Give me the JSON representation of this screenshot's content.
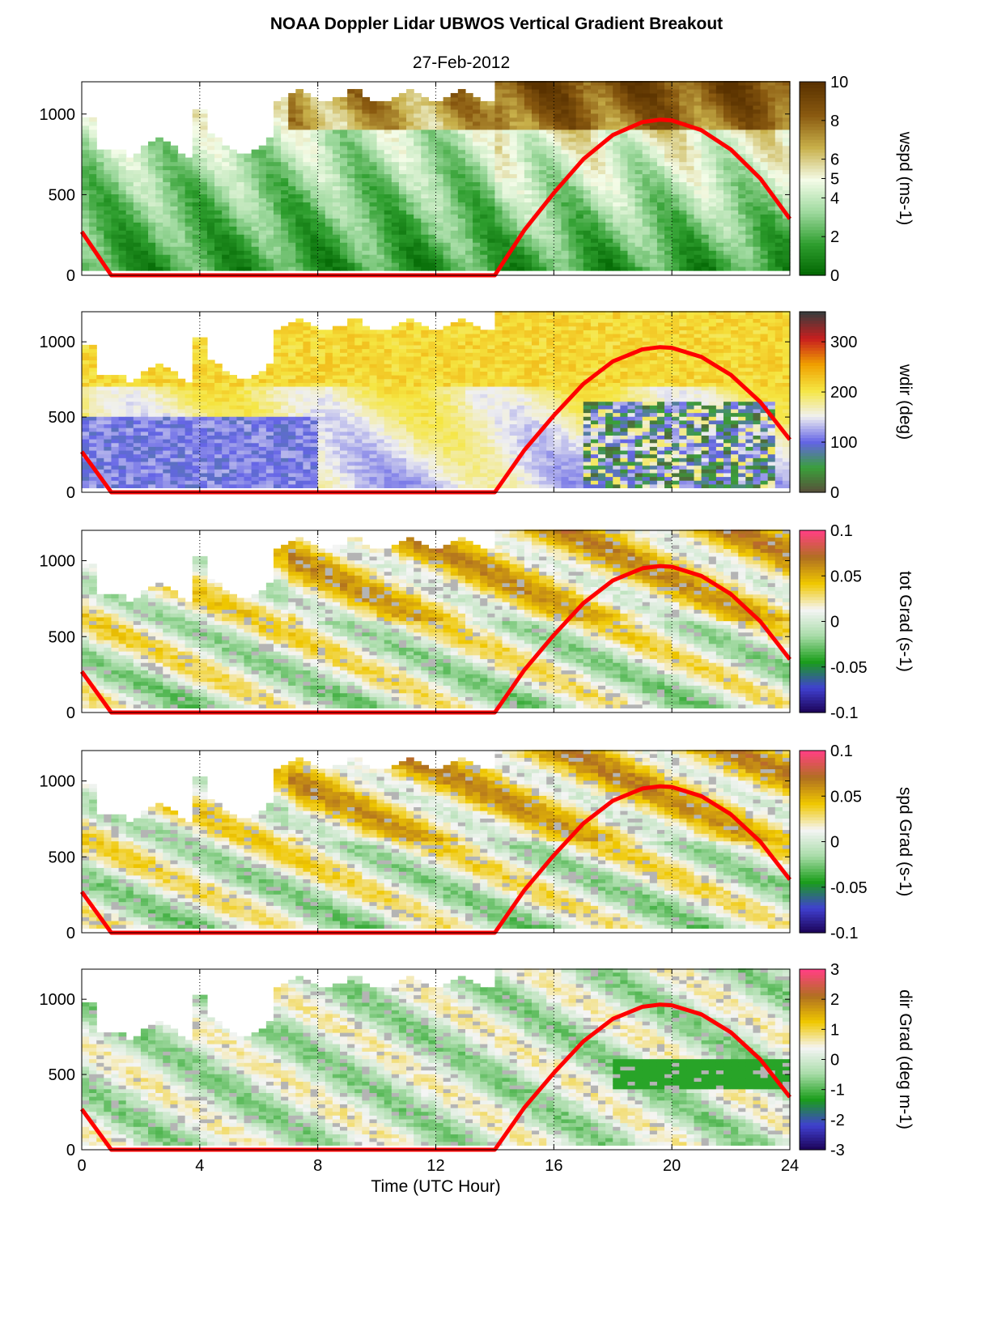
{
  "title": "NOAA Doppler Lidar  UBWOS  Vertical Gradient Breakout",
  "subtitle": "27-Feb-2012",
  "chart_data": {
    "type": "heatmap",
    "xlabel": "Time (UTC Hour)",
    "xlim": [
      0,
      24
    ],
    "xticks": [
      0,
      4,
      8,
      12,
      16,
      20,
      24
    ],
    "ylim": [
      0,
      1200
    ],
    "yticks": [
      0,
      500,
      1000
    ],
    "dotted_gridlines_x": [
      4,
      8,
      12,
      16,
      20
    ],
    "overlay_line": {
      "color": "#ff0000",
      "points": [
        [
          0,
          270
        ],
        [
          1,
          0
        ],
        [
          14,
          0
        ],
        [
          15,
          280
        ],
        [
          16,
          510
        ],
        [
          17,
          720
        ],
        [
          18,
          870
        ],
        [
          19,
          950
        ],
        [
          19.6,
          965
        ],
        [
          20,
          960
        ],
        [
          21,
          900
        ],
        [
          22,
          780
        ],
        [
          23,
          600
        ],
        [
          24,
          350
        ]
      ]
    },
    "panels": [
      {
        "id": "wspd",
        "colorbar_label": "wspd (ms-1)",
        "colorbar_ticks": [
          "10",
          "8",
          "6",
          "5",
          "4",
          "2",
          "0"
        ],
        "clim": [
          0,
          10
        ],
        "description_colors": [
          "#006400",
          "#2e9e2e",
          "#9ed99e",
          "#f4fce8",
          "#c8b04a",
          "#8a5a10",
          "#5a3200"
        ]
      },
      {
        "id": "wdir",
        "colorbar_label": "wdir (deg)",
        "colorbar_ticks": [
          "300",
          "200",
          "100",
          "0"
        ],
        "clim": [
          0,
          360
        ],
        "description_colors": [
          "#5a4a3a",
          "#3aa03a",
          "#6464e6",
          "#f0f0f0",
          "#f5e642",
          "#f0a000",
          "#c81e1e",
          "#3c3c3c"
        ]
      },
      {
        "id": "totgrad",
        "colorbar_label": "tot Grad (s-1)",
        "colorbar_ticks": [
          "0.1",
          "0.05",
          "0",
          "-0.05",
          "-0.1"
        ],
        "clim": [
          -0.1,
          0.1
        ],
        "description_colors": [
          "#1a0050",
          "#4040d0",
          "#1a9e1a",
          "#a8dca8",
          "#f5f5f5",
          "#f0c800",
          "#b07020",
          "#ff4080"
        ]
      },
      {
        "id": "spdgrad",
        "colorbar_label": "spd Grad (s-1)",
        "colorbar_ticks": [
          "0.1",
          "0.05",
          "0",
          "-0.05",
          "-0.1"
        ],
        "clim": [
          -0.1,
          0.1
        ],
        "description_colors": [
          "#1a0050",
          "#4040d0",
          "#1a9e1a",
          "#a8dca8",
          "#f5f5f5",
          "#f0c800",
          "#b07020",
          "#ff4080"
        ]
      },
      {
        "id": "dirgrad",
        "colorbar_label": "dir Grad (deg m-1)",
        "colorbar_ticks": [
          "3",
          "2",
          "1",
          "0",
          "-1",
          "-2",
          "-3"
        ],
        "clim": [
          -3,
          3
        ],
        "description_colors": [
          "#1a0050",
          "#4040d0",
          "#1a9e1a",
          "#a8dca8",
          "#f5f5f5",
          "#f0c800",
          "#b07020",
          "#ff4080"
        ]
      }
    ]
  }
}
